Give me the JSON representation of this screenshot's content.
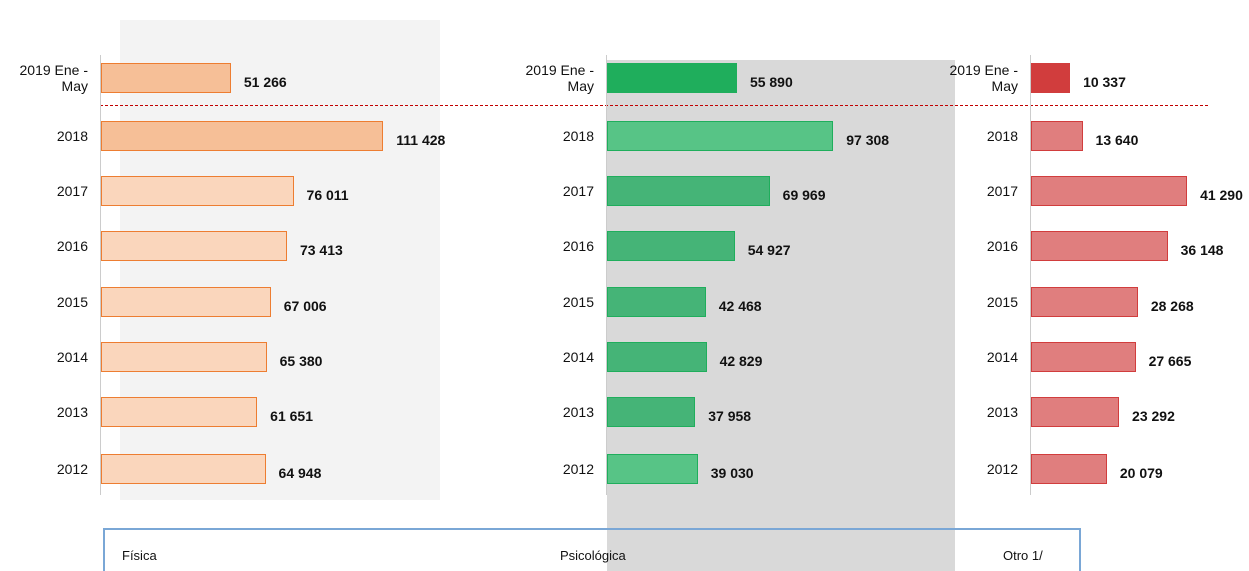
{
  "chart_data": [
    {
      "type": "bar",
      "title": "Física",
      "categories": [
        "2019 Ene - May",
        "2018",
        "2017",
        "2016",
        "2015",
        "2014",
        "2013",
        "2012"
      ],
      "values": [
        51266,
        111428,
        76011,
        73413,
        67006,
        65380,
        61651,
        64948
      ],
      "value_labels": [
        "51 266",
        "111 428",
        "76 011",
        "73 413",
        "67 006",
        "65 380",
        "61 651",
        "64 948"
      ],
      "colors": [
        "#f6bf97",
        "#f6bf97",
        "#fad6bc",
        "#fad6bc",
        "#fad6bc",
        "#fad6bc",
        "#fad6bc",
        "#fad6bc"
      ],
      "border": "#ed7d31",
      "xlim": [
        0,
        120000
      ]
    },
    {
      "type": "bar",
      "title": "Psicológica",
      "categories": [
        "2019 Ene - May",
        "2018",
        "2017",
        "2016",
        "2015",
        "2014",
        "2013",
        "2012"
      ],
      "values": [
        55890,
        97308,
        69969,
        54927,
        42468,
        42829,
        37958,
        39030
      ],
      "value_labels": [
        "55 890",
        "97 308",
        "69 969",
        "54 927",
        "42 468",
        "42 829",
        "37 958",
        "39 030"
      ],
      "colors": [
        "#1fae5c",
        "#57c486",
        "#45b477",
        "#45b477",
        "#45b477",
        "#45b477",
        "#45b477",
        "#57c486"
      ],
      "border": "#1fae5c",
      "xlim": [
        0,
        120000
      ]
    },
    {
      "type": "bar",
      "title": "Otro 1/",
      "categories": [
        "2019 Ene - May",
        "2018",
        "2017",
        "2016",
        "2015",
        "2014",
        "2013",
        "2012"
      ],
      "values": [
        10337,
        13640,
        41290,
        36148,
        28268,
        27665,
        23292,
        20079
      ],
      "value_labels": [
        "10 337",
        "13 640",
        "41 290",
        "36 148",
        "28 268",
        "27 665",
        "23 292",
        "20 079"
      ],
      "colors": [
        "#d13d3d",
        "#e07e7e",
        "#e07e7e",
        "#e07e7e",
        "#e07e7e",
        "#e07e7e",
        "#e07e7e",
        "#e07e7e"
      ],
      "border": "#d13d3d",
      "xlim": [
        0,
        50000
      ]
    }
  ]
}
